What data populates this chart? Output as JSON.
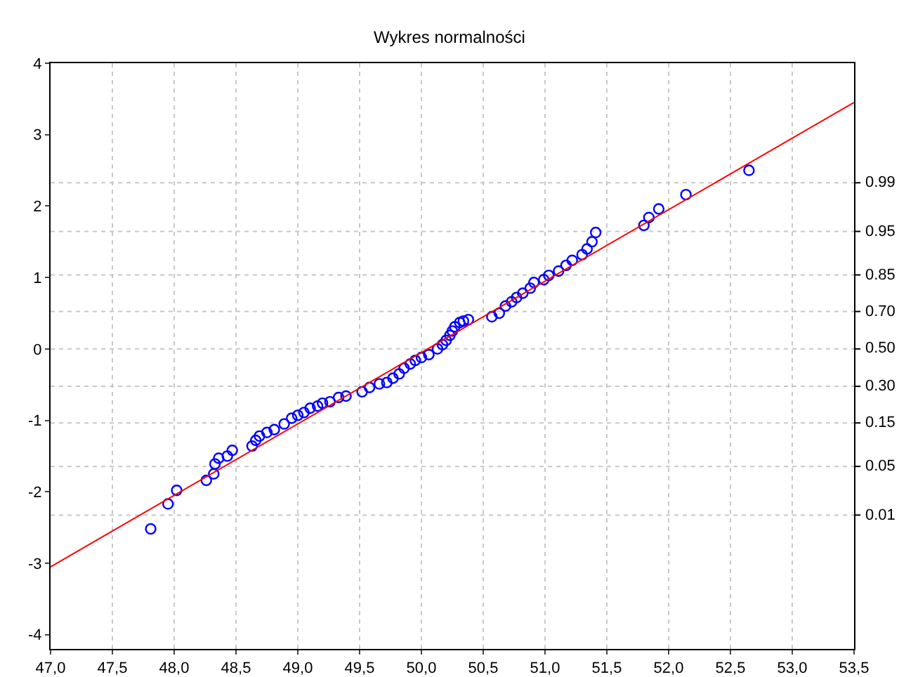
{
  "chart_data": {
    "type": "scatter",
    "title": "Wykres normalności",
    "xlim": [
      47,
      53.5
    ],
    "xticks": [
      {
        "value": 47,
        "label": "47,0"
      },
      {
        "value": 47.5,
        "label": "47,5"
      },
      {
        "value": 48,
        "label": "48,0"
      },
      {
        "value": 48.5,
        "label": "48,5"
      },
      {
        "value": 49,
        "label": "49,0"
      },
      {
        "value": 49.5,
        "label": "49,5"
      },
      {
        "value": 50,
        "label": "50,0"
      },
      {
        "value": 50.5,
        "label": "50,5"
      },
      {
        "value": 51,
        "label": "51,0"
      },
      {
        "value": 51.5,
        "label": "51,5"
      },
      {
        "value": 52,
        "label": "52,0"
      },
      {
        "value": 52.5,
        "label": "52,5"
      },
      {
        "value": 53,
        "label": "53,0"
      },
      {
        "value": 53.5,
        "label": "53,5"
      }
    ],
    "ylim": [
      -4.2,
      4
    ],
    "yticks": [
      -4,
      -3,
      -2,
      -1,
      0,
      1,
      2,
      3,
      4
    ],
    "ref_lines": [
      {
        "axis": "y",
        "value": -2.326,
        "color": "#c8c8c8",
        "line_style": "dotted"
      },
      {
        "axis": "y",
        "value": -1.645,
        "color": "#c8c8c8",
        "line_style": "dotted"
      },
      {
        "axis": "y",
        "value": -1.036,
        "color": "#c8c8c8",
        "line_style": "dotted"
      },
      {
        "axis": "y",
        "value": -0.524,
        "color": "#c8c8c8",
        "line_style": "dotted"
      },
      {
        "axis": "y",
        "value": 0,
        "color": "#c8c8c8",
        "line_style": "dotted"
      },
      {
        "axis": "y",
        "value": 0.524,
        "color": "#c8c8c8",
        "line_style": "dotted"
      },
      {
        "axis": "y",
        "value": 1.036,
        "color": "#c8c8c8",
        "line_style": "dotted"
      },
      {
        "axis": "y",
        "value": 1.645,
        "color": "#c8c8c8",
        "line_style": "dotted"
      },
      {
        "axis": "y",
        "value": 2.326,
        "color": "#c8c8c8",
        "line_style": "dotted"
      }
    ],
    "annotations": [
      "0.01",
      "0.05",
      "0.15",
      "0.30",
      "0.50",
      "0.70",
      "0.85",
      "0.95",
      "0.99"
    ],
    "grid": "x",
    "marker": "circle",
    "series": [
      {
        "color": "#0000ff",
        "x": [
          47.81,
          47.95,
          48.02,
          48.26,
          48.32,
          48.33,
          48.36,
          48.43,
          48.47,
          48.63,
          48.66,
          48.69,
          48.75,
          48.81,
          48.89,
          48.95,
          49.0,
          49.05,
          49.1,
          49.16,
          49.2,
          49.26,
          49.33,
          49.39,
          49.52,
          49.58,
          49.66,
          49.72,
          49.77,
          49.82,
          49.86,
          49.91,
          49.95,
          50.0,
          50.06,
          50.13,
          50.17,
          50.2,
          50.23,
          50.25,
          50.27,
          50.31,
          50.34,
          50.38,
          50.57,
          50.63,
          50.68,
          50.73,
          50.77,
          50.82,
          50.88,
          50.91,
          50.99,
          51.03,
          51.11,
          51.17,
          51.22,
          51.3,
          51.34,
          51.38,
          51.41,
          51.8,
          51.84,
          51.92,
          52.14,
          52.65
        ],
        "values": [
          -2.52,
          -2.17,
          -1.98,
          -1.84,
          -1.75,
          -1.61,
          -1.53,
          -1.5,
          -1.42,
          -1.36,
          -1.28,
          -1.22,
          -1.17,
          -1.13,
          -1.05,
          -0.97,
          -0.93,
          -0.89,
          -0.83,
          -0.8,
          -0.76,
          -0.74,
          -0.68,
          -0.66,
          -0.6,
          -0.54,
          -0.49,
          -0.47,
          -0.41,
          -0.35,
          -0.27,
          -0.21,
          -0.16,
          -0.12,
          -0.08,
          0,
          0.06,
          0.12,
          0.19,
          0.25,
          0.31,
          0.37,
          0.39,
          0.41,
          0.45,
          0.5,
          0.6,
          0.66,
          0.72,
          0.78,
          0.85,
          0.93,
          0.97,
          1.03,
          1.09,
          1.17,
          1.24,
          1.32,
          1.4,
          1.5,
          1.63,
          1.73,
          1.84,
          1.96,
          2.16,
          2.5
        ]
      },
      {
        "type": "line",
        "color": "#ff0000",
        "marker": "none",
        "line_style": "solid",
        "x": [
          47,
          53.5
        ],
        "values": [
          -3.05,
          3.45
        ]
      }
    ]
  }
}
